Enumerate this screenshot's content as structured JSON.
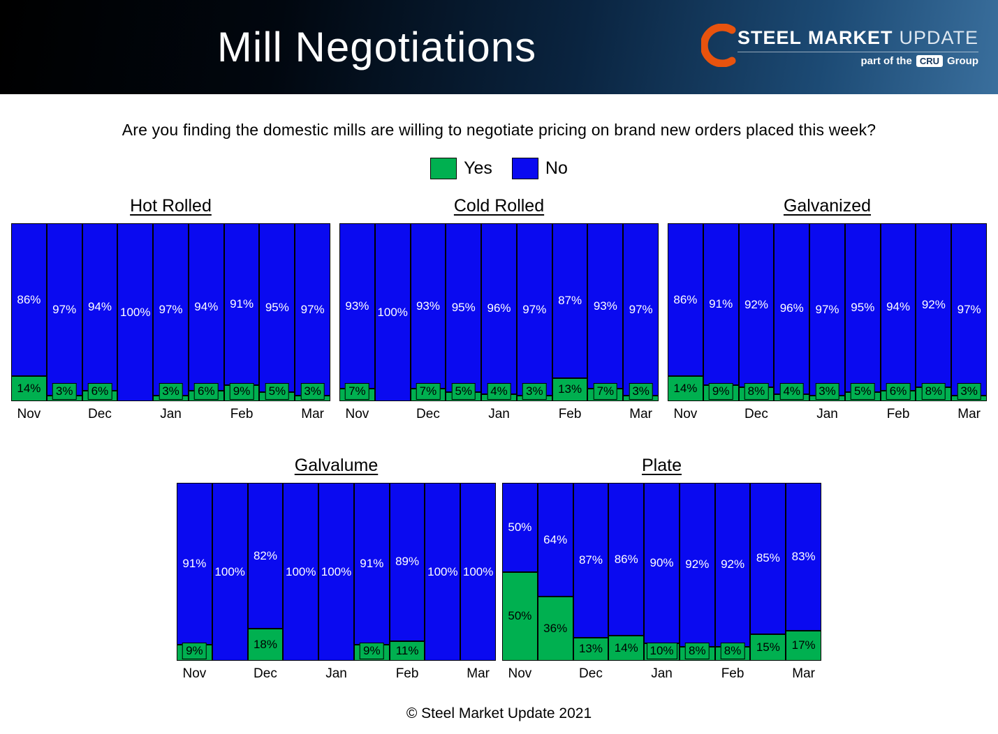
{
  "header": {
    "title": "Mill Negotiations",
    "logo": {
      "steel": "STEEL",
      "market": "MARKET",
      "update": "UPDATE",
      "tagline_prefix": "part of the",
      "cru": "CRU",
      "tagline_suffix": "Group"
    }
  },
  "question": "Are you finding the domestic mills are willing to negotiate pricing on brand new orders placed this week?",
  "legend": {
    "yes_label": "Yes",
    "no_label": "No"
  },
  "colors": {
    "yes": "#00B050",
    "no": "#0A0AF0",
    "swoosh_orange": "#E8530E"
  },
  "footer": "© Steel Market Update 2021",
  "chart_data": [
    {
      "type": "bar",
      "stacked": true,
      "unit": "%",
      "ylim": [
        0,
        100
      ],
      "title": "Hot Rolled",
      "categories": [
        "Nov",
        "",
        "Dec",
        "",
        "Jan",
        "",
        "Feb",
        "",
        "Mar"
      ],
      "series": [
        {
          "name": "Yes",
          "values": [
            14,
            3,
            6,
            0,
            3,
            6,
            9,
            5,
            3
          ]
        },
        {
          "name": "No",
          "values": [
            86,
            97,
            94,
            100,
            97,
            94,
            91,
            95,
            97
          ]
        }
      ]
    },
    {
      "type": "bar",
      "stacked": true,
      "unit": "%",
      "ylim": [
        0,
        100
      ],
      "title": "Cold Rolled",
      "categories": [
        "Nov",
        "",
        "Dec",
        "",
        "Jan",
        "",
        "Feb",
        "",
        "Mar"
      ],
      "series": [
        {
          "name": "Yes",
          "values": [
            7,
            0,
            7,
            5,
            4,
            3,
            13,
            7,
            3
          ]
        },
        {
          "name": "No",
          "values": [
            93,
            100,
            93,
            95,
            96,
            97,
            87,
            93,
            97
          ]
        }
      ]
    },
    {
      "type": "bar",
      "stacked": true,
      "unit": "%",
      "ylim": [
        0,
        100
      ],
      "title": "Galvanized",
      "categories": [
        "Nov",
        "",
        "Dec",
        "",
        "Jan",
        "",
        "Feb",
        "",
        "Mar"
      ],
      "series": [
        {
          "name": "Yes",
          "values": [
            14,
            9,
            8,
            4,
            3,
            5,
            6,
            8,
            3
          ]
        },
        {
          "name": "No",
          "values": [
            86,
            91,
            92,
            96,
            97,
            95,
            94,
            92,
            97
          ]
        }
      ]
    },
    {
      "type": "bar",
      "stacked": true,
      "unit": "%",
      "ylim": [
        0,
        100
      ],
      "title": "Galvalume",
      "categories": [
        "Nov",
        "",
        "Dec",
        "",
        "Jan",
        "",
        "Feb",
        "",
        "Mar"
      ],
      "series": [
        {
          "name": "Yes",
          "values": [
            9,
            0,
            18,
            0,
            0,
            9,
            11,
            0,
            0
          ]
        },
        {
          "name": "No",
          "values": [
            91,
            100,
            82,
            100,
            100,
            91,
            89,
            100,
            100
          ]
        }
      ]
    },
    {
      "type": "bar",
      "stacked": true,
      "unit": "%",
      "ylim": [
        0,
        100
      ],
      "title": "Plate",
      "categories": [
        "Nov",
        "",
        "Dec",
        "",
        "Jan",
        "",
        "Feb",
        "",
        "Mar"
      ],
      "series": [
        {
          "name": "Yes",
          "values": [
            50,
            36,
            13,
            14,
            10,
            8,
            8,
            15,
            17
          ]
        },
        {
          "name": "No",
          "values": [
            50,
            64,
            87,
            86,
            90,
            92,
            92,
            85,
            83
          ]
        }
      ]
    }
  ]
}
